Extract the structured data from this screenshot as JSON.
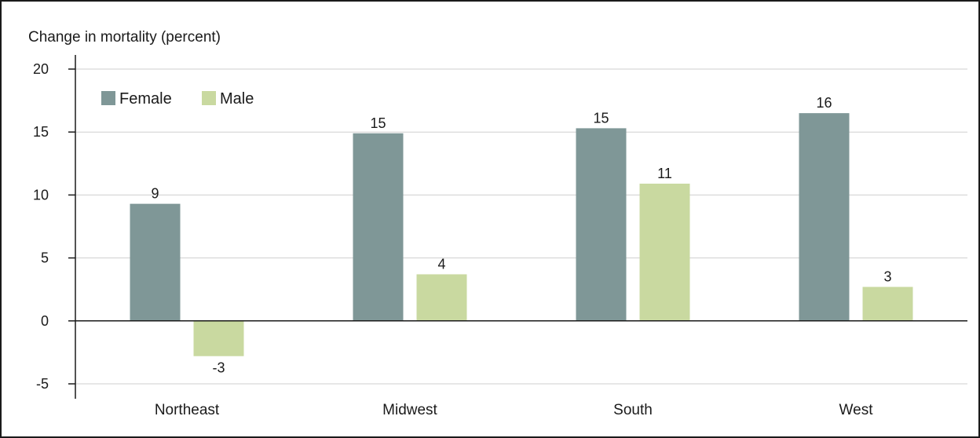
{
  "chart_data": {
    "type": "bar",
    "title": "",
    "ylabel": "Change in mortality (percent)",
    "xlabel": "",
    "categories": [
      "Northeast",
      "Midwest",
      "South",
      "West"
    ],
    "series": [
      {
        "name": "Female",
        "color": "#7f9797",
        "values": [
          9.3,
          14.9,
          15.3,
          16.5
        ],
        "labels": [
          "9",
          "15",
          "15",
          "16"
        ]
      },
      {
        "name": "Male",
        "color": "#c9d9a0",
        "values": [
          -2.8,
          3.7,
          10.9,
          2.7
        ],
        "labels": [
          "-3",
          "4",
          "11",
          "3"
        ]
      }
    ],
    "ylim": [
      -5,
      20
    ],
    "yticks": [
      -5,
      0,
      5,
      10,
      15,
      20
    ],
    "ytick_labels": [
      "-5",
      "0",
      "5",
      "10",
      "15",
      "20"
    ],
    "grid": true,
    "legend": "top-left"
  }
}
